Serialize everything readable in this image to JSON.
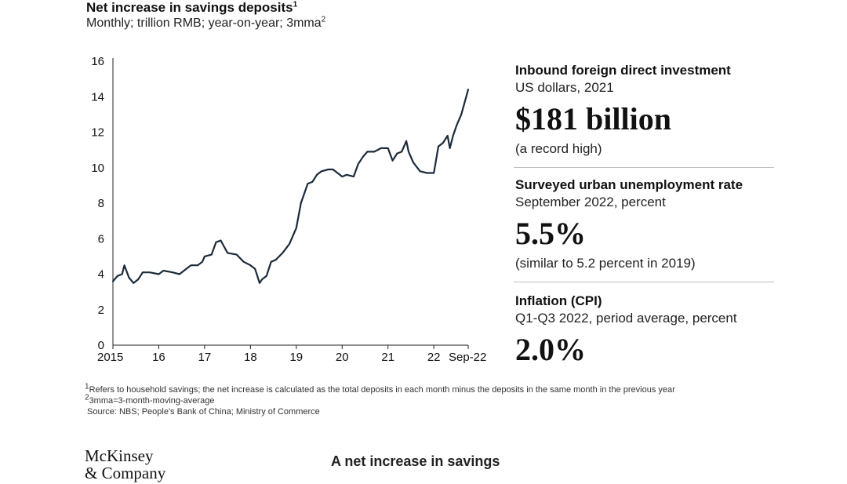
{
  "header": {
    "title": "Net increase in savings deposits",
    "title_sup": "1",
    "subtitle": "Monthly; trillion RMB; year-on-year; 3mma",
    "subtitle_sup": "2"
  },
  "chart_data": {
    "type": "line",
    "title": "Net increase in savings deposits",
    "ylabel": "trillion RMB",
    "xlabel": "",
    "ylim": [
      0,
      16
    ],
    "xlim": [
      2015,
      2022.75
    ],
    "y_ticks": [
      0,
      2,
      4,
      6,
      8,
      10,
      12,
      14,
      16
    ],
    "x_ticks": [
      {
        "value": 2015,
        "label": "2015"
      },
      {
        "value": 2016,
        "label": "16"
      },
      {
        "value": 2017,
        "label": "17"
      },
      {
        "value": 2018,
        "label": "18"
      },
      {
        "value": 2019,
        "label": "19"
      },
      {
        "value": 2020,
        "label": "20"
      },
      {
        "value": 2021,
        "label": "21"
      },
      {
        "value": 2022,
        "label": "22"
      },
      {
        "value": 2022.75,
        "label": "Sep-22"
      }
    ],
    "grid": false,
    "series": [
      {
        "name": "Net increase in savings deposits",
        "color": "#1b2a3a",
        "x": [
          2015.0,
          2015.1,
          2015.2,
          2015.25,
          2015.35,
          2015.45,
          2015.55,
          2015.65,
          2015.8,
          2016.0,
          2016.1,
          2016.3,
          2016.45,
          2016.7,
          2016.85,
          2016.95,
          2017.0,
          2017.15,
          2017.25,
          2017.35,
          2017.5,
          2017.7,
          2017.85,
          2018.0,
          2018.1,
          2018.2,
          2018.25,
          2018.35,
          2018.45,
          2018.55,
          2018.7,
          2018.85,
          2019.0,
          2019.1,
          2019.25,
          2019.35,
          2019.45,
          2019.55,
          2019.7,
          2019.8,
          2019.9,
          2020.0,
          2020.1,
          2020.25,
          2020.35,
          2020.45,
          2020.55,
          2020.7,
          2020.85,
          2021.0,
          2021.1,
          2021.2,
          2021.3,
          2021.4,
          2021.45,
          2021.55,
          2021.7,
          2021.85,
          2022.0,
          2022.1,
          2022.2,
          2022.3,
          2022.35,
          2022.42,
          2022.5,
          2022.6,
          2022.75
        ],
        "values": [
          3.6,
          3.9,
          4.0,
          4.5,
          3.8,
          3.5,
          3.7,
          4.1,
          4.1,
          4.0,
          4.2,
          4.1,
          4.0,
          4.5,
          4.5,
          4.7,
          5.0,
          5.1,
          5.8,
          5.9,
          5.2,
          5.1,
          4.7,
          4.5,
          4.3,
          3.5,
          3.7,
          3.9,
          4.7,
          4.8,
          5.2,
          5.7,
          6.6,
          8.0,
          9.1,
          9.2,
          9.6,
          9.8,
          9.9,
          9.9,
          9.7,
          9.5,
          9.6,
          9.5,
          10.2,
          10.6,
          10.9,
          10.9,
          11.1,
          11.1,
          10.4,
          10.8,
          10.9,
          11.5,
          10.9,
          10.3,
          9.8,
          9.7,
          9.7,
          11.2,
          11.4,
          11.8,
          11.1,
          11.8,
          12.4,
          13.0,
          14.4
        ]
      }
    ]
  },
  "stats": [
    {
      "label": "Inbound foreign direct investment",
      "sub": "US dollars, 2021",
      "value": "$181 billion",
      "note": "(a record high)"
    },
    {
      "label": "Surveyed urban unemployment rate",
      "sub": "September 2022, percent",
      "value": "5.5%",
      "note": "(similar to 5.2 percent in 2019)"
    },
    {
      "label": "Inflation (CPI)",
      "sub": "Q1-Q3 2022, period average, percent",
      "value": "2.0%",
      "note": ""
    }
  ],
  "footnotes": {
    "note1_mark": "1",
    "note1": "Refers to household savings; the net increase is calculated as the total deposits in each month minus the deposits in the same month in the previous year",
    "note2_mark": "2",
    "note2": "3mma=3-month-moving-average",
    "source": "Source: NBS; People's Bank of China; Ministry of Commerce"
  },
  "logo": {
    "line1": "McKinsey",
    "line2": "& Company"
  },
  "caption": "A net increase in savings"
}
